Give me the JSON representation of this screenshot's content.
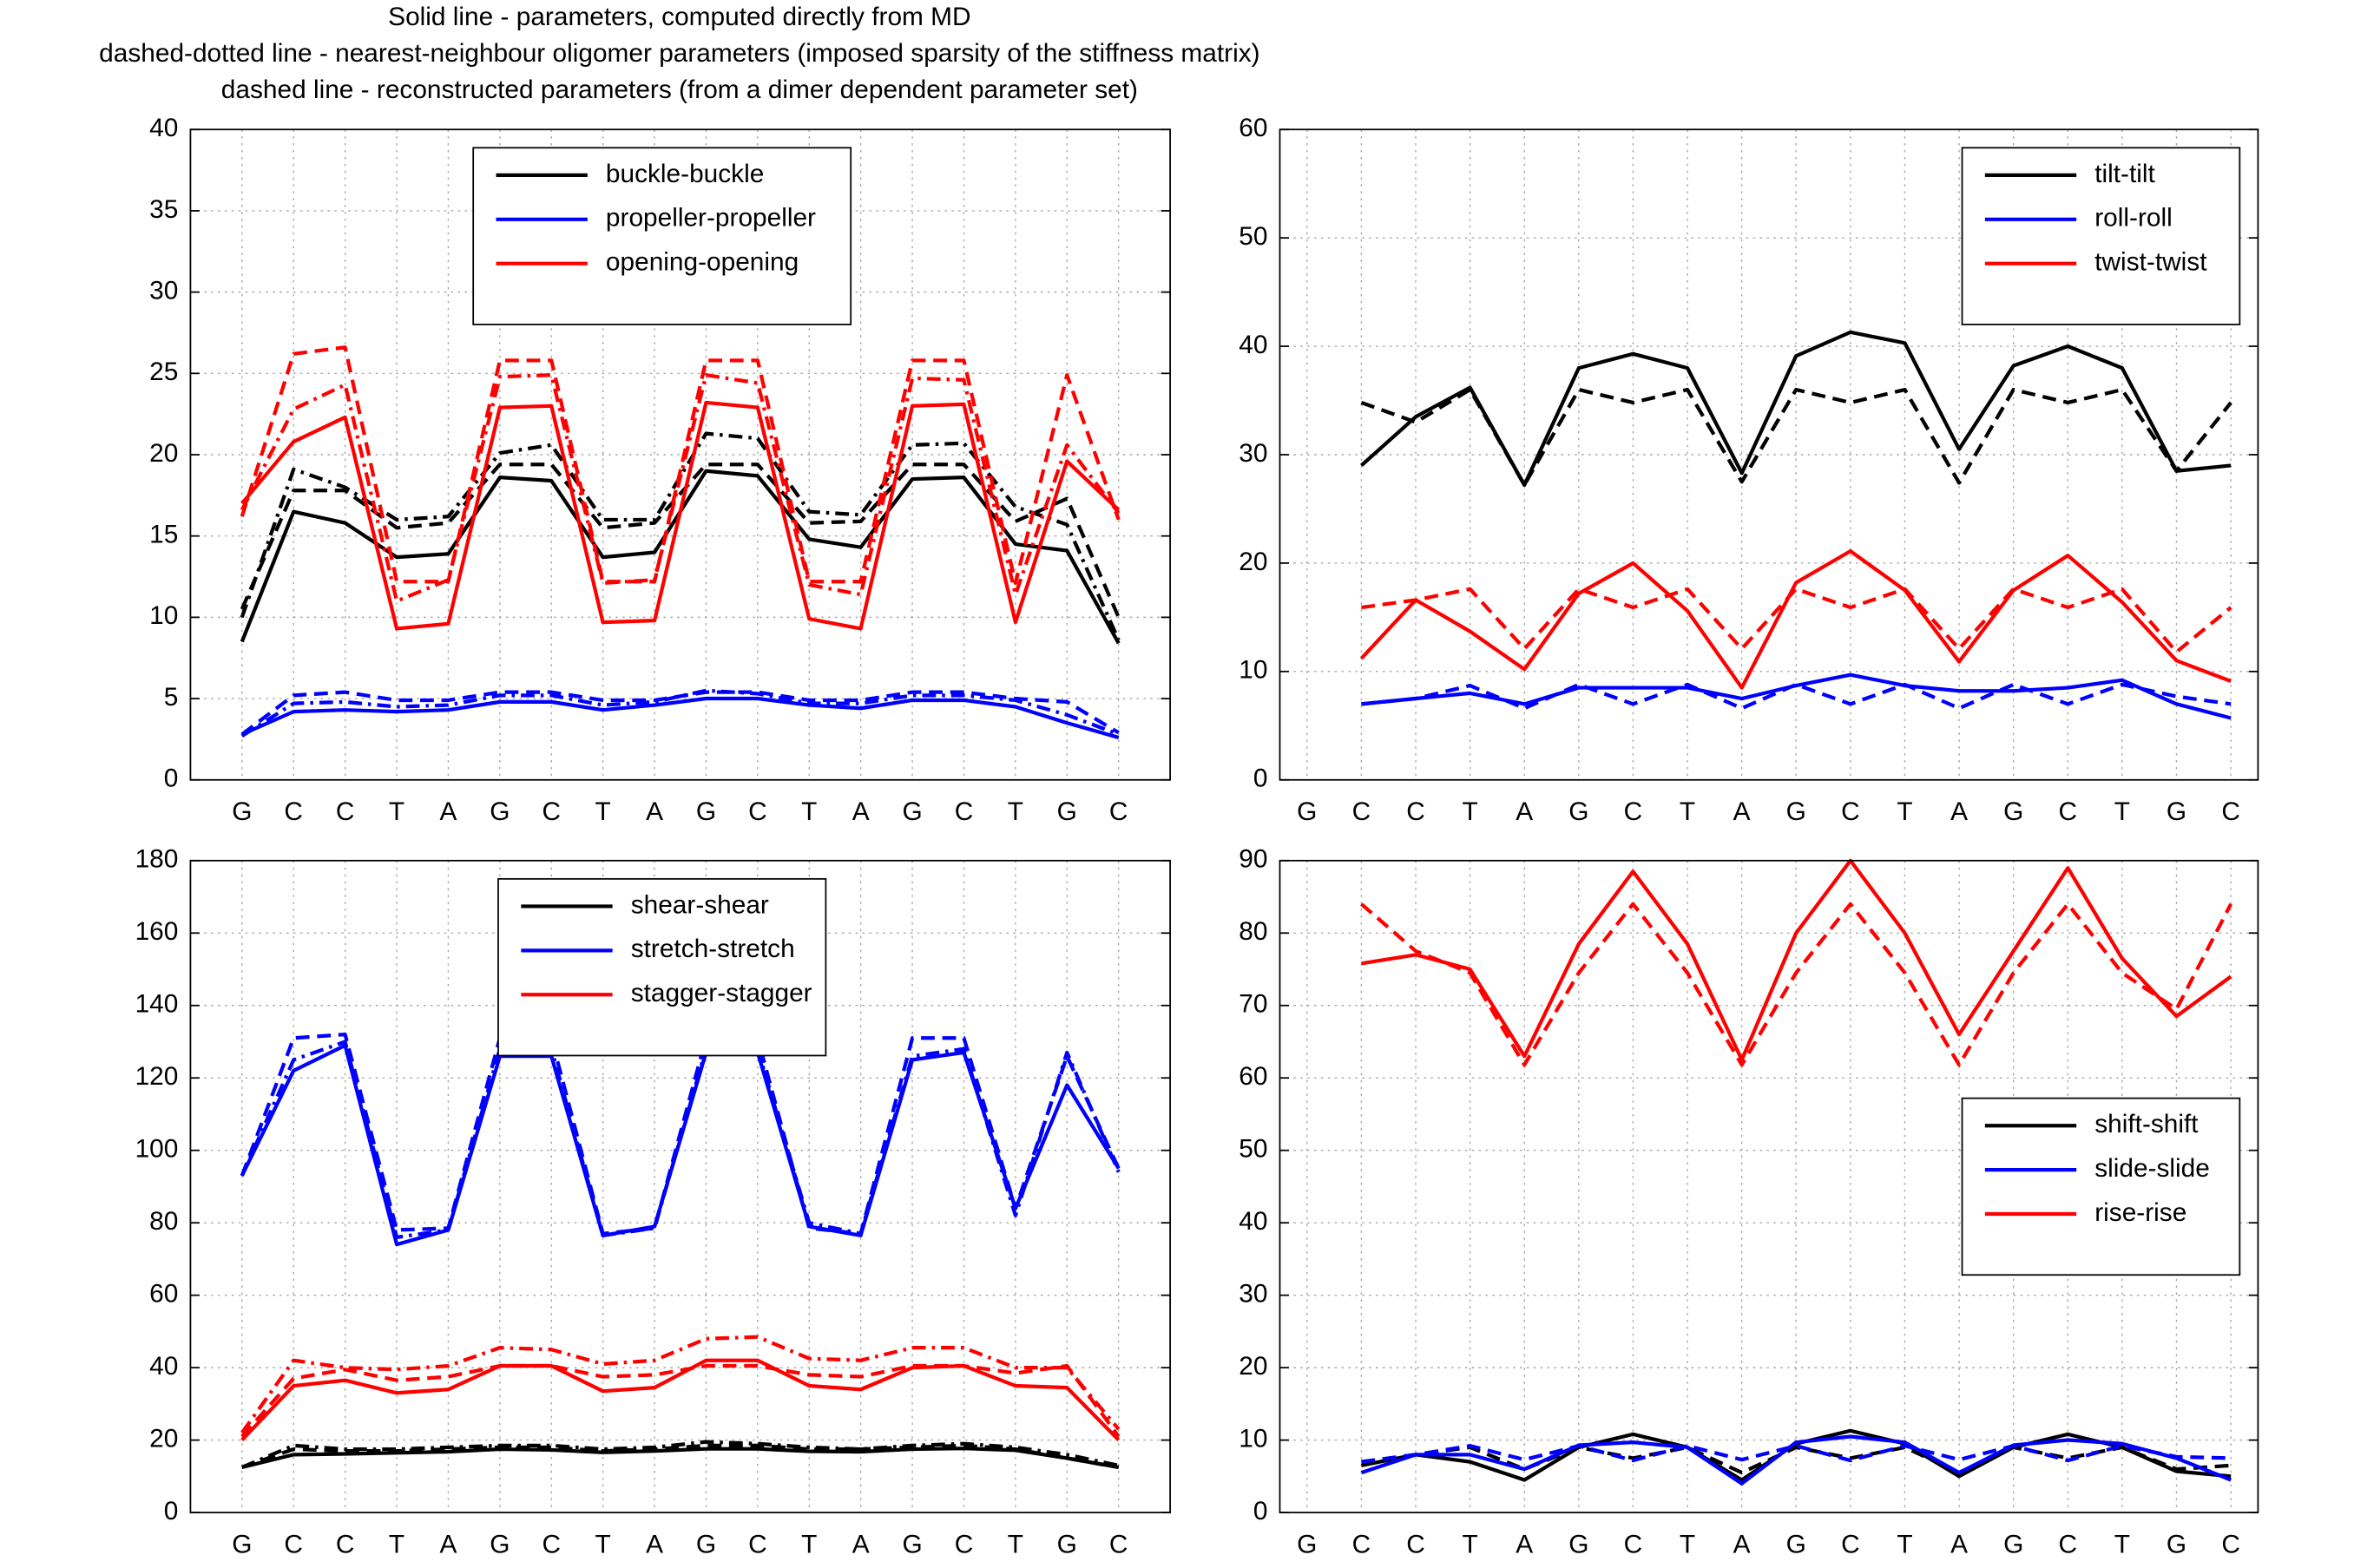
{
  "title": [
    "Solid line - parameters, computed directly from MD",
    "dashed-dotted line - nearest-neighbour oligomer parameters (imposed sparsity of the stiffness matrix)",
    "dashed line - reconstructed parameters (from a dimer dependent parameter set)"
  ],
  "chart_data": [
    {
      "type": "line",
      "categories": [
        "G",
        "C",
        "C",
        "T",
        "A",
        "G",
        "C",
        "T",
        "A",
        "G",
        "C",
        "T",
        "A",
        "G",
        "C",
        "T",
        "G",
        "C"
      ],
      "ylim": [
        0,
        40
      ],
      "yticks": [
        0,
        5,
        10,
        15,
        20,
        25,
        30,
        35,
        40
      ],
      "grid": true,
      "legend": "upper center",
      "series": [
        {
          "name": "buckle-buckle",
          "color": "#000000",
          "values": [
            8.5,
            16.5,
            15.8,
            13.7,
            13.9,
            18.6,
            18.4,
            13.7,
            14.0,
            19.0,
            18.7,
            14.8,
            14.3,
            18.5,
            18.6,
            14.5,
            14.1,
            8.4
          ],
          "dashed_values": [
            10.5,
            17.8,
            17.8,
            15.5,
            15.8,
            19.4,
            19.4,
            15.5,
            15.8,
            19.4,
            19.4,
            15.8,
            15.9,
            19.4,
            19.4,
            15.9,
            17.3,
            10.0
          ],
          "dashdot_values": [
            10.0,
            19.1,
            18.0,
            16.0,
            16.2,
            20.1,
            20.6,
            16.0,
            16.0,
            21.3,
            21.0,
            16.5,
            16.3,
            20.6,
            20.7,
            16.8,
            15.7,
            8.6
          ]
        },
        {
          "name": "propeller-propeller",
          "color": "#0000ff",
          "values": [
            2.8,
            4.2,
            4.3,
            4.2,
            4.3,
            4.8,
            4.8,
            4.3,
            4.6,
            5.0,
            5.0,
            4.6,
            4.4,
            4.9,
            4.9,
            4.5,
            3.5,
            2.6
          ],
          "dashed_values": [
            2.8,
            5.2,
            5.4,
            4.9,
            4.9,
            5.4,
            5.4,
            4.9,
            4.9,
            5.4,
            5.4,
            4.9,
            4.9,
            5.4,
            5.4,
            5.0,
            4.8,
            2.9
          ],
          "dashdot_values": [
            2.7,
            4.7,
            4.8,
            4.5,
            4.6,
            5.2,
            5.2,
            4.6,
            4.8,
            5.5,
            5.3,
            4.7,
            4.7,
            5.2,
            5.2,
            4.9,
            4.0,
            2.8
          ]
        },
        {
          "name": "opening-opening",
          "color": "#ff0000",
          "values": [
            17.0,
            20.8,
            22.3,
            9.3,
            9.6,
            22.9,
            23.0,
            9.7,
            9.8,
            23.2,
            22.9,
            9.9,
            9.3,
            23.0,
            23.1,
            9.7,
            19.6,
            16.6
          ],
          "dashed_values": [
            16.2,
            26.2,
            26.6,
            12.2,
            12.2,
            25.8,
            25.8,
            12.2,
            12.2,
            25.8,
            25.8,
            12.2,
            12.2,
            25.8,
            25.8,
            12.1,
            24.9,
            16.0
          ],
          "dashdot_values": [
            16.6,
            22.8,
            24.3,
            11.0,
            12.3,
            24.8,
            24.9,
            12.1,
            12.3,
            24.9,
            24.4,
            12.0,
            11.4,
            24.7,
            24.6,
            11.4,
            20.6,
            16.4
          ]
        }
      ]
    },
    {
      "type": "line",
      "categories": [
        "G",
        "C",
        "C",
        "T",
        "A",
        "G",
        "C",
        "T",
        "A",
        "G",
        "C",
        "T",
        "A",
        "G",
        "C",
        "T",
        "G",
        "C"
      ],
      "ylim": [
        0,
        60
      ],
      "yticks": [
        0,
        10,
        20,
        30,
        40,
        50,
        60
      ],
      "grid": true,
      "legend": "upper right",
      "series": [
        {
          "name": "tilt-tilt",
          "color": "#000000",
          "values": [
            null,
            29,
            33.5,
            36.2,
            27.2,
            38,
            39.3,
            38,
            28.3,
            39.1,
            41.3,
            40.3,
            30.5,
            38.2,
            40,
            38,
            28.5,
            29
          ],
          "dashed_values": [
            null,
            34.8,
            33,
            36,
            27.2,
            36,
            34.8,
            36,
            27.5,
            36,
            34.8,
            36,
            27.4,
            36,
            34.8,
            36,
            28.5,
            34.8
          ]
        },
        {
          "name": "roll-roll",
          "color": "#0000ff",
          "values": [
            null,
            7.0,
            7.5,
            8.0,
            7.0,
            8.5,
            8.5,
            8.5,
            7.5,
            8.7,
            9.7,
            8.7,
            8.2,
            8.2,
            8.5,
            9.2,
            7.0,
            5.7
          ],
          "dashed_values": [
            null,
            7.0,
            7.5,
            8.7,
            6.6,
            8.8,
            7.0,
            8.8,
            6.6,
            8.8,
            7.0,
            8.8,
            6.6,
            8.8,
            7.0,
            8.8,
            7.7,
            7.0
          ]
        },
        {
          "name": "twist-twist",
          "color": "#ff0000",
          "values": [
            null,
            11.2,
            16.6,
            13.7,
            10.2,
            17.2,
            20,
            15.6,
            8.5,
            18.2,
            21.1,
            17.5,
            10.9,
            17.5,
            20.7,
            16.4,
            11.0,
            9.1
          ],
          "dashed_values": [
            null,
            15.9,
            16.6,
            17.6,
            12.1,
            17.6,
            15.9,
            17.6,
            12.1,
            17.6,
            15.9,
            17.6,
            12.1,
            17.6,
            15.9,
            17.6,
            11.8,
            15.9
          ]
        }
      ]
    },
    {
      "type": "line",
      "categories": [
        "G",
        "C",
        "C",
        "T",
        "A",
        "G",
        "C",
        "T",
        "A",
        "G",
        "C",
        "T",
        "A",
        "G",
        "C",
        "T",
        "G",
        "C"
      ],
      "ylim": [
        0,
        180
      ],
      "yticks": [
        0,
        20,
        40,
        60,
        80,
        100,
        120,
        140,
        160,
        180
      ],
      "grid": true,
      "legend": "upper center",
      "series": [
        {
          "name": "shear-shear",
          "color": "#000000",
          "values": [
            12.5,
            16,
            16.2,
            16.5,
            16.8,
            17.5,
            17.3,
            16.6,
            17,
            17.6,
            17.6,
            16.9,
            16.8,
            17.5,
            17.7,
            17.2,
            15,
            12.5
          ],
          "dashed_values": [
            12.5,
            17.5,
            17,
            17,
            17.5,
            18,
            18,
            17,
            17.5,
            18.5,
            18.5,
            17.5,
            17.5,
            18,
            18.5,
            17.5,
            15,
            12.5
          ],
          "dashdot_values": [
            12.5,
            18.5,
            17.5,
            17.5,
            18,
            18.5,
            18.5,
            17.5,
            18,
            19.5,
            19,
            18,
            17.5,
            18.5,
            19,
            18,
            16,
            13
          ]
        },
        {
          "name": "stretch-stretch",
          "color": "#0000ff",
          "values": [
            93,
            122,
            129,
            74,
            78,
            126,
            126,
            76.5,
            79,
            127,
            127,
            79,
            76.5,
            125,
            127,
            84,
            118,
            95
          ],
          "dashed_values": [
            93,
            131,
            132,
            78,
            78.5,
            131,
            131,
            77,
            78.5,
            131,
            131,
            78.5,
            77,
            131,
            131,
            84,
            126,
            95
          ],
          "dashdot_values": [
            93,
            125,
            130,
            76,
            78,
            128,
            128,
            76.5,
            78.5,
            128,
            128,
            80,
            77,
            126,
            128,
            82,
            127,
            94
          ]
        },
        {
          "name": "stagger-stagger",
          "color": "#ff0000",
          "values": [
            20,
            35,
            36.5,
            33,
            34,
            40.5,
            40.5,
            33.5,
            34.5,
            42,
            42,
            35,
            34,
            40,
            40.5,
            35,
            34.5,
            20
          ],
          "dashed_values": [
            21,
            37,
            39.5,
            36.5,
            37.5,
            40.5,
            40.5,
            37.5,
            38,
            40.5,
            40.5,
            38,
            37.5,
            40.5,
            40.5,
            38.5,
            40.5,
            21
          ],
          "dashdot_values": [
            22,
            42,
            40,
            39.5,
            40.5,
            45.5,
            45,
            41,
            42,
            48,
            48.5,
            42.5,
            42,
            45.5,
            45.5,
            40,
            40,
            23
          ]
        }
      ]
    },
    {
      "type": "line",
      "categories": [
        "G",
        "C",
        "C",
        "T",
        "A",
        "G",
        "C",
        "T",
        "A",
        "G",
        "C",
        "T",
        "A",
        "G",
        "C",
        "T",
        "G",
        "C"
      ],
      "ylim": [
        0,
        90
      ],
      "yticks": [
        0,
        10,
        20,
        30,
        40,
        50,
        60,
        70,
        80,
        90
      ],
      "grid": true,
      "legend": "center right",
      "series": [
        {
          "name": "shift-shift",
          "color": "#000000",
          "values": [
            null,
            6.5,
            8,
            7,
            4.5,
            9,
            10.8,
            9,
            4.5,
            9.5,
            11.3,
            9.5,
            5,
            9,
            10.8,
            9,
            5.7,
            5
          ],
          "dashed_values": [
            null,
            7,
            8,
            9,
            6,
            9,
            7.5,
            9,
            5.5,
            9,
            7.5,
            9,
            5.5,
            9,
            7.5,
            9,
            6,
            6.5
          ]
        },
        {
          "name": "slide-slide",
          "color": "#0000ff",
          "values": [
            null,
            5.5,
            8,
            8,
            6,
            9.3,
            9.7,
            9,
            4,
            9.7,
            10.5,
            9.7,
            5.5,
            9.3,
            10,
            9.5,
            7.5,
            4.5
          ],
          "dashed_values": [
            null,
            7,
            8,
            9.2,
            7.3,
            9.2,
            7.2,
            9.2,
            7.3,
            9.2,
            7.2,
            9.2,
            7.3,
            9.2,
            7.2,
            9.2,
            7.7,
            7.5
          ]
        },
        {
          "name": "rise-rise",
          "color": "#ff0000",
          "values": [
            null,
            75.8,
            77,
            75,
            63,
            78.5,
            88.5,
            78.5,
            62.5,
            80,
            90,
            80,
            66,
            77.5,
            89,
            76.5,
            68.5,
            74
          ],
          "dashed_values": [
            null,
            84,
            77.5,
            74.5,
            61.8,
            74.5,
            84,
            74.5,
            61.8,
            74.5,
            84,
            74.5,
            61.8,
            74.5,
            84,
            74.5,
            69.5,
            84
          ]
        }
      ]
    }
  ]
}
